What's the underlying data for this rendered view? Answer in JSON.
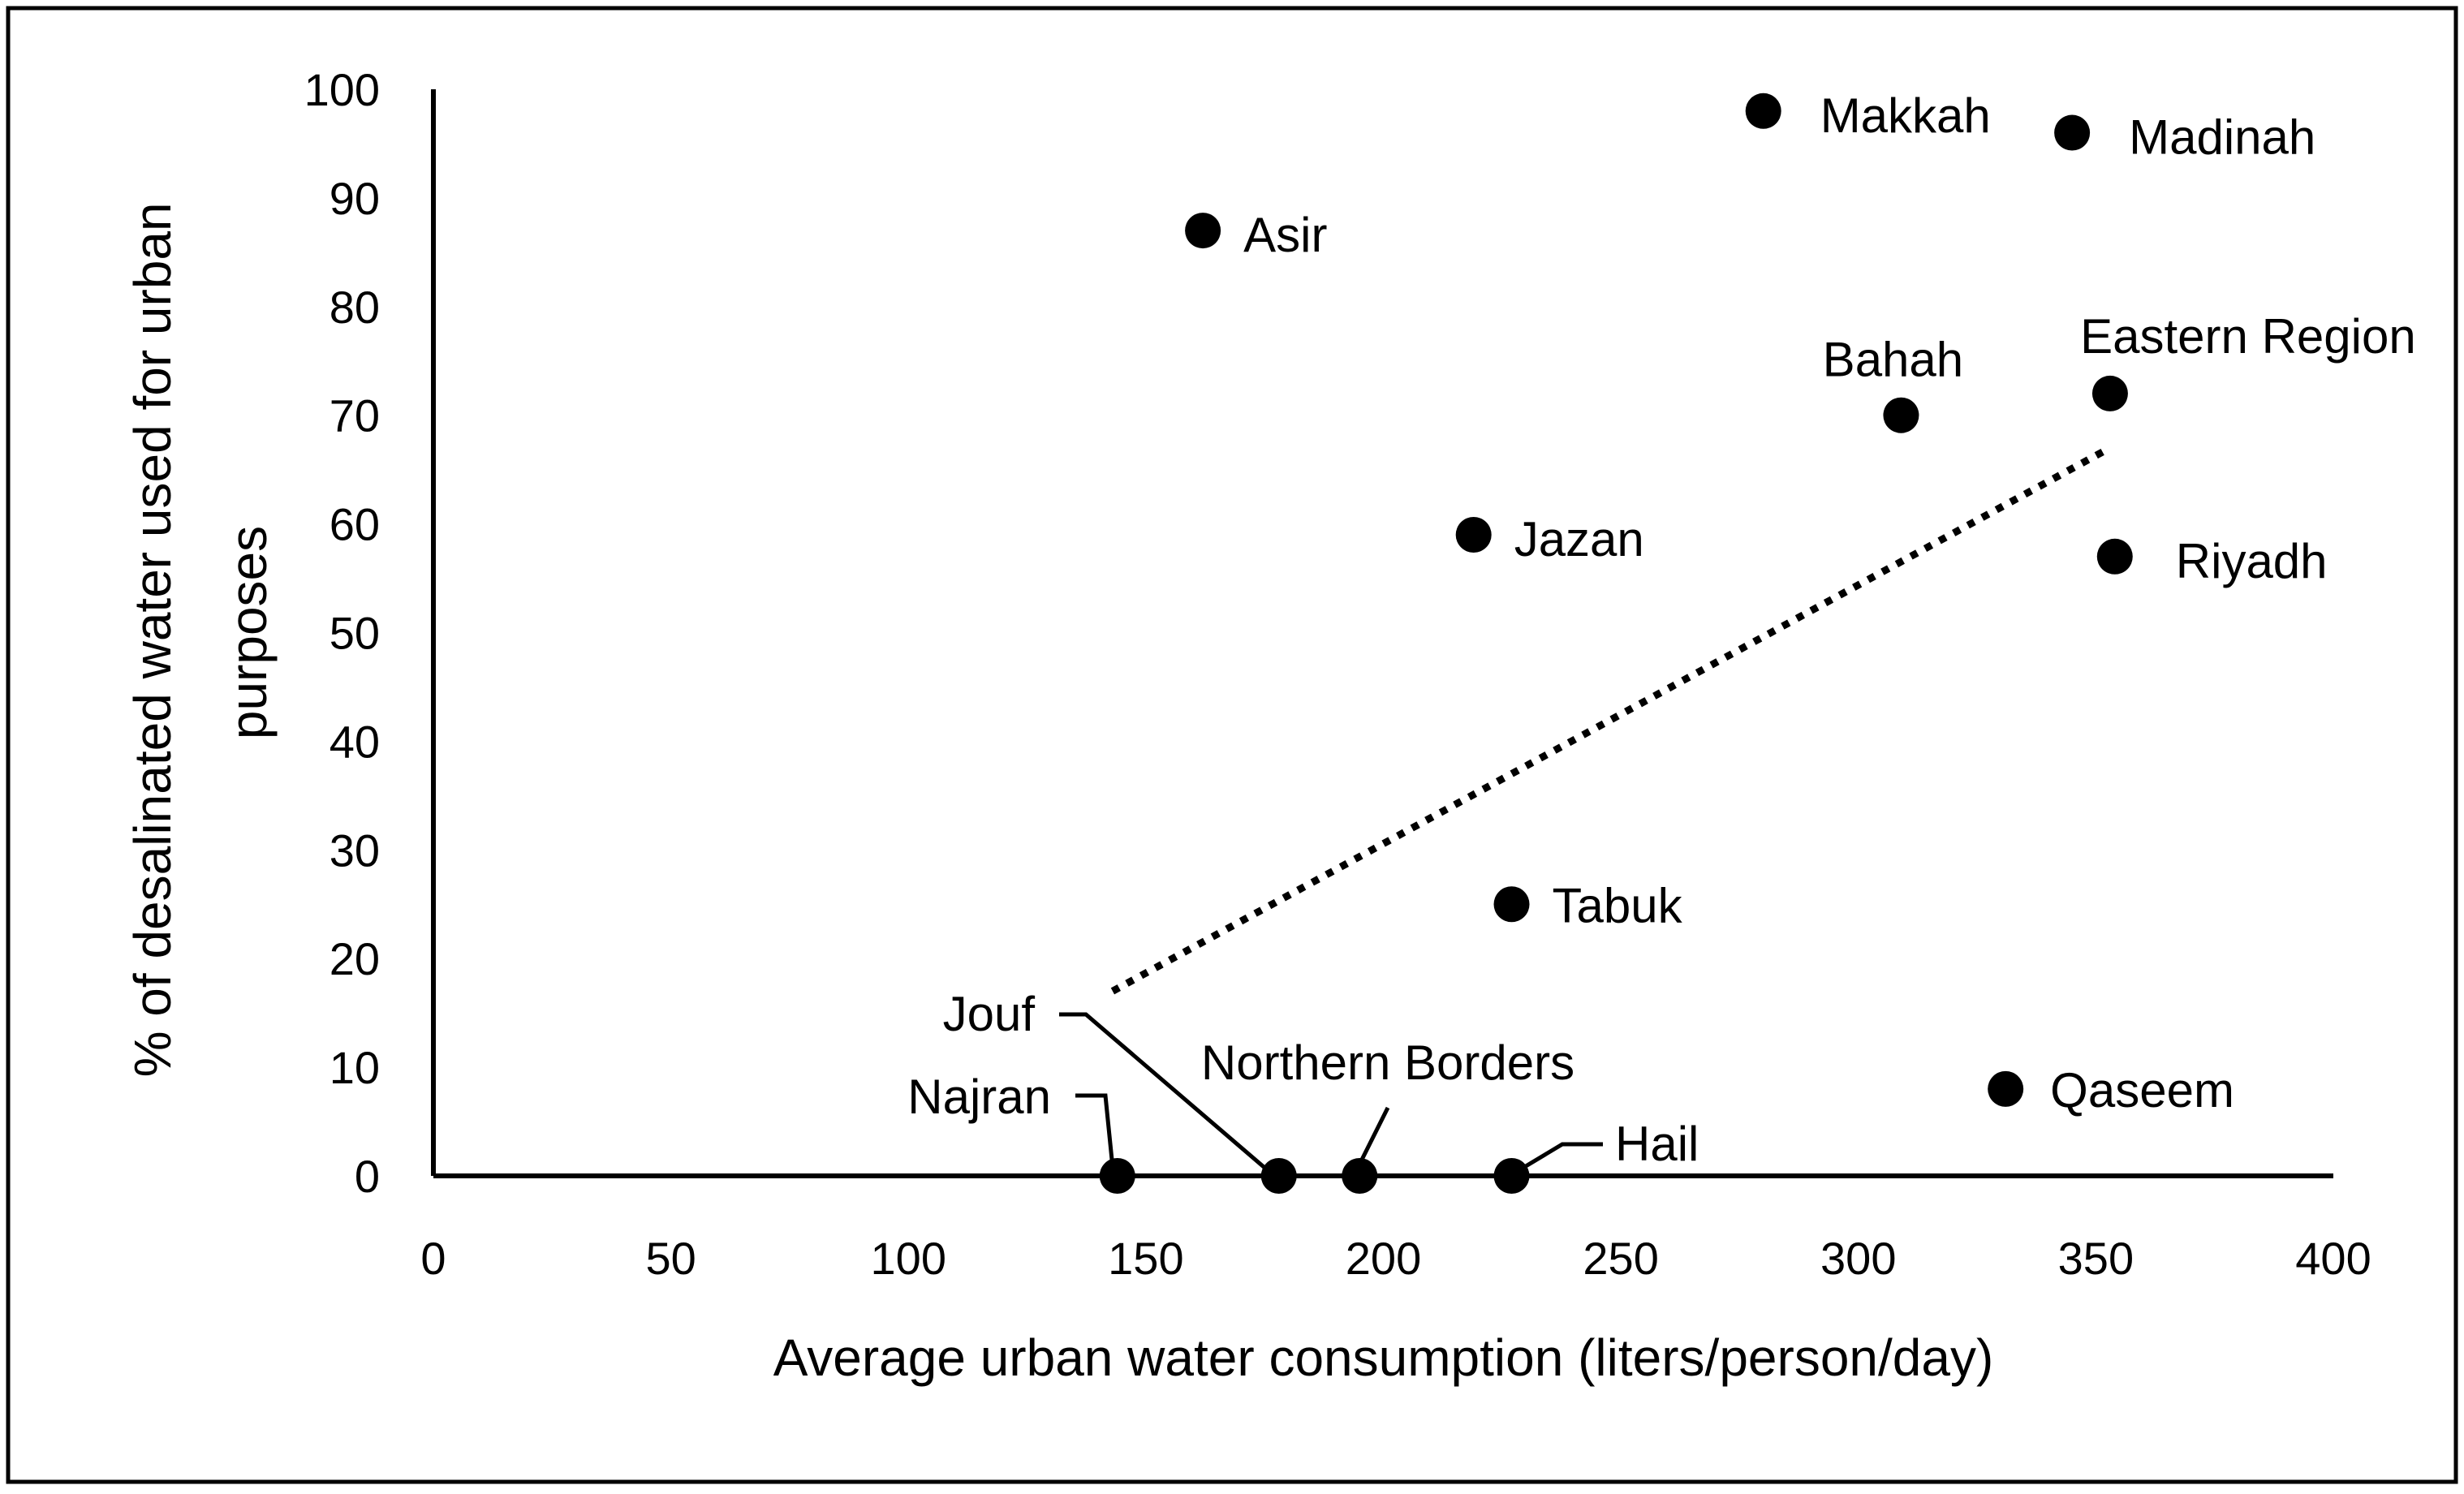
{
  "chart_data": {
    "type": "scatter",
    "title": "",
    "xlabel": "Average urban water consumption (liters/person/day)",
    "ylabel": [
      "% of desalinated water used for urban",
      "purposes"
    ],
    "xlim": [
      0,
      400
    ],
    "ylim": [
      0,
      100
    ],
    "xticks": [
      0,
      50,
      100,
      150,
      200,
      250,
      300,
      350,
      400
    ],
    "yticks": [
      0,
      10,
      20,
      30,
      40,
      50,
      60,
      70,
      80,
      90,
      100
    ],
    "grid": false,
    "legend": "none",
    "marker_color": "#000000",
    "points": [
      {
        "name": "Makkah",
        "x": 280,
        "y": 98
      },
      {
        "name": "Madinah",
        "x": 345,
        "y": 96
      },
      {
        "name": "Asir",
        "x": 162,
        "y": 87
      },
      {
        "name": "Bahah",
        "x": 309,
        "y": 70
      },
      {
        "name": "Eastern Region",
        "x": 353,
        "y": 72
      },
      {
        "name": "Jazan",
        "x": 219,
        "y": 59
      },
      {
        "name": "Riyadh",
        "x": 354,
        "y": 57
      },
      {
        "name": "Tabuk",
        "x": 227,
        "y": 25
      },
      {
        "name": "Qaseem",
        "x": 331,
        "y": 8
      },
      {
        "name": "Najran",
        "x": 144,
        "y": 0
      },
      {
        "name": "Jouf",
        "x": 178,
        "y": 0
      },
      {
        "name": "Northern Borders",
        "x": 195,
        "y": 0
      },
      {
        "name": "Hail",
        "x": 227,
        "y": 0
      }
    ],
    "trendline": {
      "style": "dotted",
      "x": [
        143,
        353
      ],
      "y": [
        17,
        67
      ]
    }
  }
}
